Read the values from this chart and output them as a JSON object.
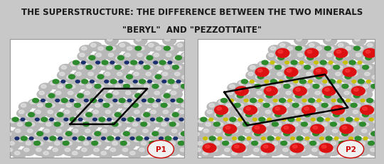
{
  "title_line1": "THE SUPERSTRUCTURE: THE DIFFERENCE BETWEEN THE TWO MINERALS",
  "title_line2": "\"BERYL\"  AND \"PEZZOTTAITE\"",
  "title_fontsize": 8.5,
  "title_color": "#1a1a1a",
  "bg_color": "#c8c8c8",
  "panel_bg": "#ffffff",
  "panel_border_color": "#999999",
  "panel1_label": "P1",
  "panel2_label": "P2",
  "label_color": "#cc0000",
  "label_fontsize": 7.5,
  "top_bar_color": "#cc0000",
  "top_bar_height": 0.018
}
